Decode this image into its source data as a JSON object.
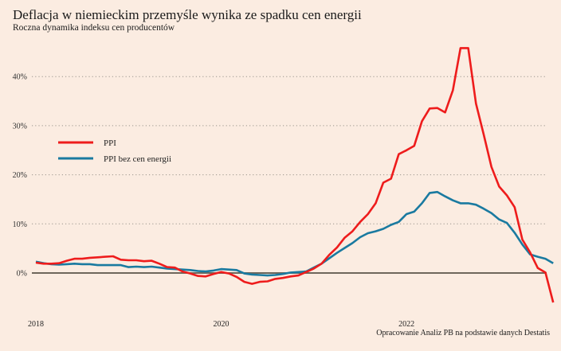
{
  "title": "Deflacja w niemieckim przemyśle wynika ze spadku cen energii",
  "subtitle": "Roczna dynamika indeksu cen producentów",
  "source": "Opracowanie Analiz PB na podstawie danych Destatis",
  "colors": {
    "background": "#fbece1",
    "ppi": "#ee1c1c",
    "ppi_ex_energy": "#1a7aa0",
    "zero_line": "#6e675c",
    "grid": "#9a948c"
  },
  "chart_data": {
    "type": "line",
    "title": "Deflacja w niemieckim przemyśle wynika ze spadku cen energii",
    "subtitle": "Roczna dynamika indeksu cen producentów",
    "xlabel": "",
    "ylabel": "",
    "x_start": "2018-01",
    "x_frequency": "monthly",
    "x_ticks": [
      "2018",
      "2020",
      "2022"
    ],
    "y_ticks": [
      "0%",
      "10%",
      "20%",
      "30%",
      "40%"
    ],
    "ylim": [
      -7,
      47
    ],
    "grid": "horizontal dotted",
    "legend": "upper-left",
    "series": [
      {
        "name": "PPI",
        "color": "#ee1c1c",
        "values": [
          2.1,
          1.9,
          1.9,
          2.0,
          2.5,
          2.9,
          2.9,
          3.1,
          3.2,
          3.3,
          3.4,
          2.7,
          2.6,
          2.6,
          2.4,
          2.5,
          1.9,
          1.2,
          1.1,
          0.3,
          -0.1,
          -0.6,
          -0.7,
          -0.2,
          0.2,
          -0.1,
          -0.8,
          -1.8,
          -2.2,
          -1.8,
          -1.7,
          -1.2,
          -1.0,
          -0.7,
          -0.5,
          0.2,
          0.9,
          1.9,
          3.7,
          5.2,
          7.2,
          8.5,
          10.4,
          12.0,
          14.2,
          18.4,
          19.2,
          24.2,
          25.0,
          25.9,
          30.9,
          33.5,
          33.6,
          32.7,
          37.2,
          45.8,
          45.8,
          34.5,
          28.2,
          21.6,
          17.6,
          15.8,
          13.4,
          6.8,
          4.2,
          1.0,
          0.1,
          -6.0
        ]
      },
      {
        "name": "PPI bez cen energii",
        "color": "#1a7aa0",
        "values": [
          2.3,
          2.0,
          1.8,
          1.7,
          1.8,
          1.9,
          1.8,
          1.8,
          1.6,
          1.6,
          1.6,
          1.6,
          1.2,
          1.3,
          1.2,
          1.3,
          1.1,
          0.9,
          0.8,
          0.7,
          0.6,
          0.4,
          0.3,
          0.5,
          0.8,
          0.7,
          0.6,
          -0.1,
          -0.3,
          -0.4,
          -0.5,
          -0.4,
          -0.2,
          0.1,
          0.2,
          0.3,
          1.1,
          1.9,
          3.0,
          4.1,
          5.1,
          6.1,
          7.3,
          8.1,
          8.5,
          9.0,
          9.8,
          10.4,
          12.0,
          12.5,
          14.2,
          16.3,
          16.5,
          15.6,
          14.8,
          14.2,
          14.2,
          13.9,
          13.1,
          12.2,
          10.9,
          10.2,
          8.2,
          5.8,
          3.8,
          3.3,
          2.9,
          2.0
        ]
      }
    ]
  }
}
